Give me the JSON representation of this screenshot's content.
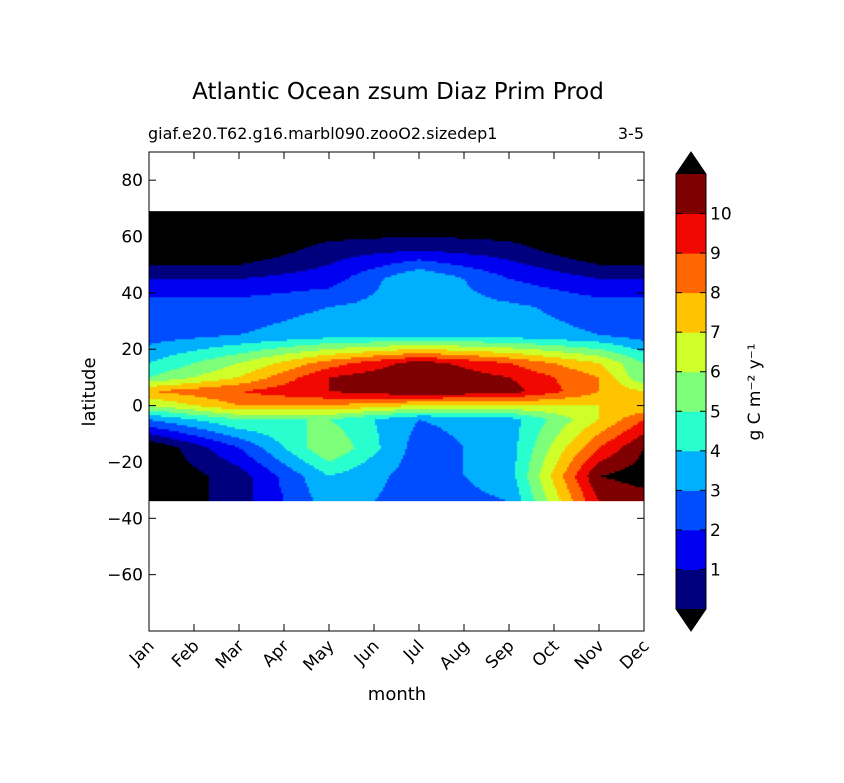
{
  "chart_data": {
    "type": "heatmap",
    "title": "Atlantic Ocean zsum Diaz Prim Prod",
    "subtitle_left": "giaf.e20.T62.g16.marbl090.zooO2.sizedep1",
    "subtitle_right": "3-5",
    "xlabel": "month",
    "ylabel": "latitude",
    "x_ticks": [
      "Jan",
      "Feb",
      "Mar",
      "Apr",
      "May",
      "Jun",
      "Jul",
      "Aug",
      "Sep",
      "Oct",
      "Nov",
      "Dec"
    ],
    "y_ticks": [
      80,
      60,
      40,
      20,
      0,
      -20,
      -40,
      -60
    ],
    "ylim": [
      -80,
      90
    ],
    "data_extent_lat": [
      -34,
      69
    ],
    "colorbar": {
      "label": "g C m⁻² y⁻¹",
      "tick_labels": [
        "1",
        "2",
        "3",
        "4",
        "5",
        "6",
        "7",
        "8",
        "9",
        "10"
      ],
      "levels": [
        0,
        1,
        2,
        3,
        4,
        5,
        6,
        7,
        8,
        9,
        10,
        11
      ],
      "colors": [
        "#00007f",
        "#0000f1",
        "#004cff",
        "#00b0ff",
        "#29ffce",
        "#7dff7a",
        "#ceff29",
        "#ffc400",
        "#ff6800",
        "#f10800",
        "#7f0000"
      ],
      "extend": "both",
      "under_color": "#000000",
      "over_color": "#000000"
    },
    "seasonal_values": {
      "lat": [
        -34,
        -25,
        -15,
        -5,
        0,
        5,
        10,
        15,
        25,
        35,
        45,
        55,
        65
      ],
      "months": [
        "Jan",
        "Mar",
        "May",
        "Jul",
        "Sep",
        "Nov",
        "Dec"
      ],
      "values": [
        [
          -1,
          0.5,
          3.5,
          2.5,
          3,
          10,
          10.5
        ],
        [
          -1,
          0.5,
          4,
          2.5,
          3.5,
          11,
          11.5
        ],
        [
          -1,
          2,
          6,
          2.5,
          3.5,
          9,
          11
        ],
        [
          3,
          5,
          5,
          3,
          3.5,
          7,
          9
        ],
        [
          6,
          8,
          8,
          7,
          7,
          7,
          7
        ],
        [
          8,
          9,
          10,
          11,
          10.5,
          8,
          7
        ],
        [
          5,
          7,
          10,
          11,
          10,
          8,
          5
        ],
        [
          4,
          6,
          8.5,
          10.5,
          9,
          7,
          5
        ],
        [
          2.5,
          3,
          3.5,
          3.5,
          3.5,
          3,
          2.5
        ],
        [
          2.5,
          2.5,
          3,
          3.5,
          3.2,
          2.5,
          2.5
        ],
        [
          1,
          1,
          1.5,
          4,
          2,
          1,
          1
        ],
        [
          -1,
          -1,
          0.5,
          1,
          0.5,
          -1,
          -1
        ],
        [
          -1,
          -1,
          -1,
          -1,
          -1,
          -1,
          -1
        ]
      ]
    }
  }
}
